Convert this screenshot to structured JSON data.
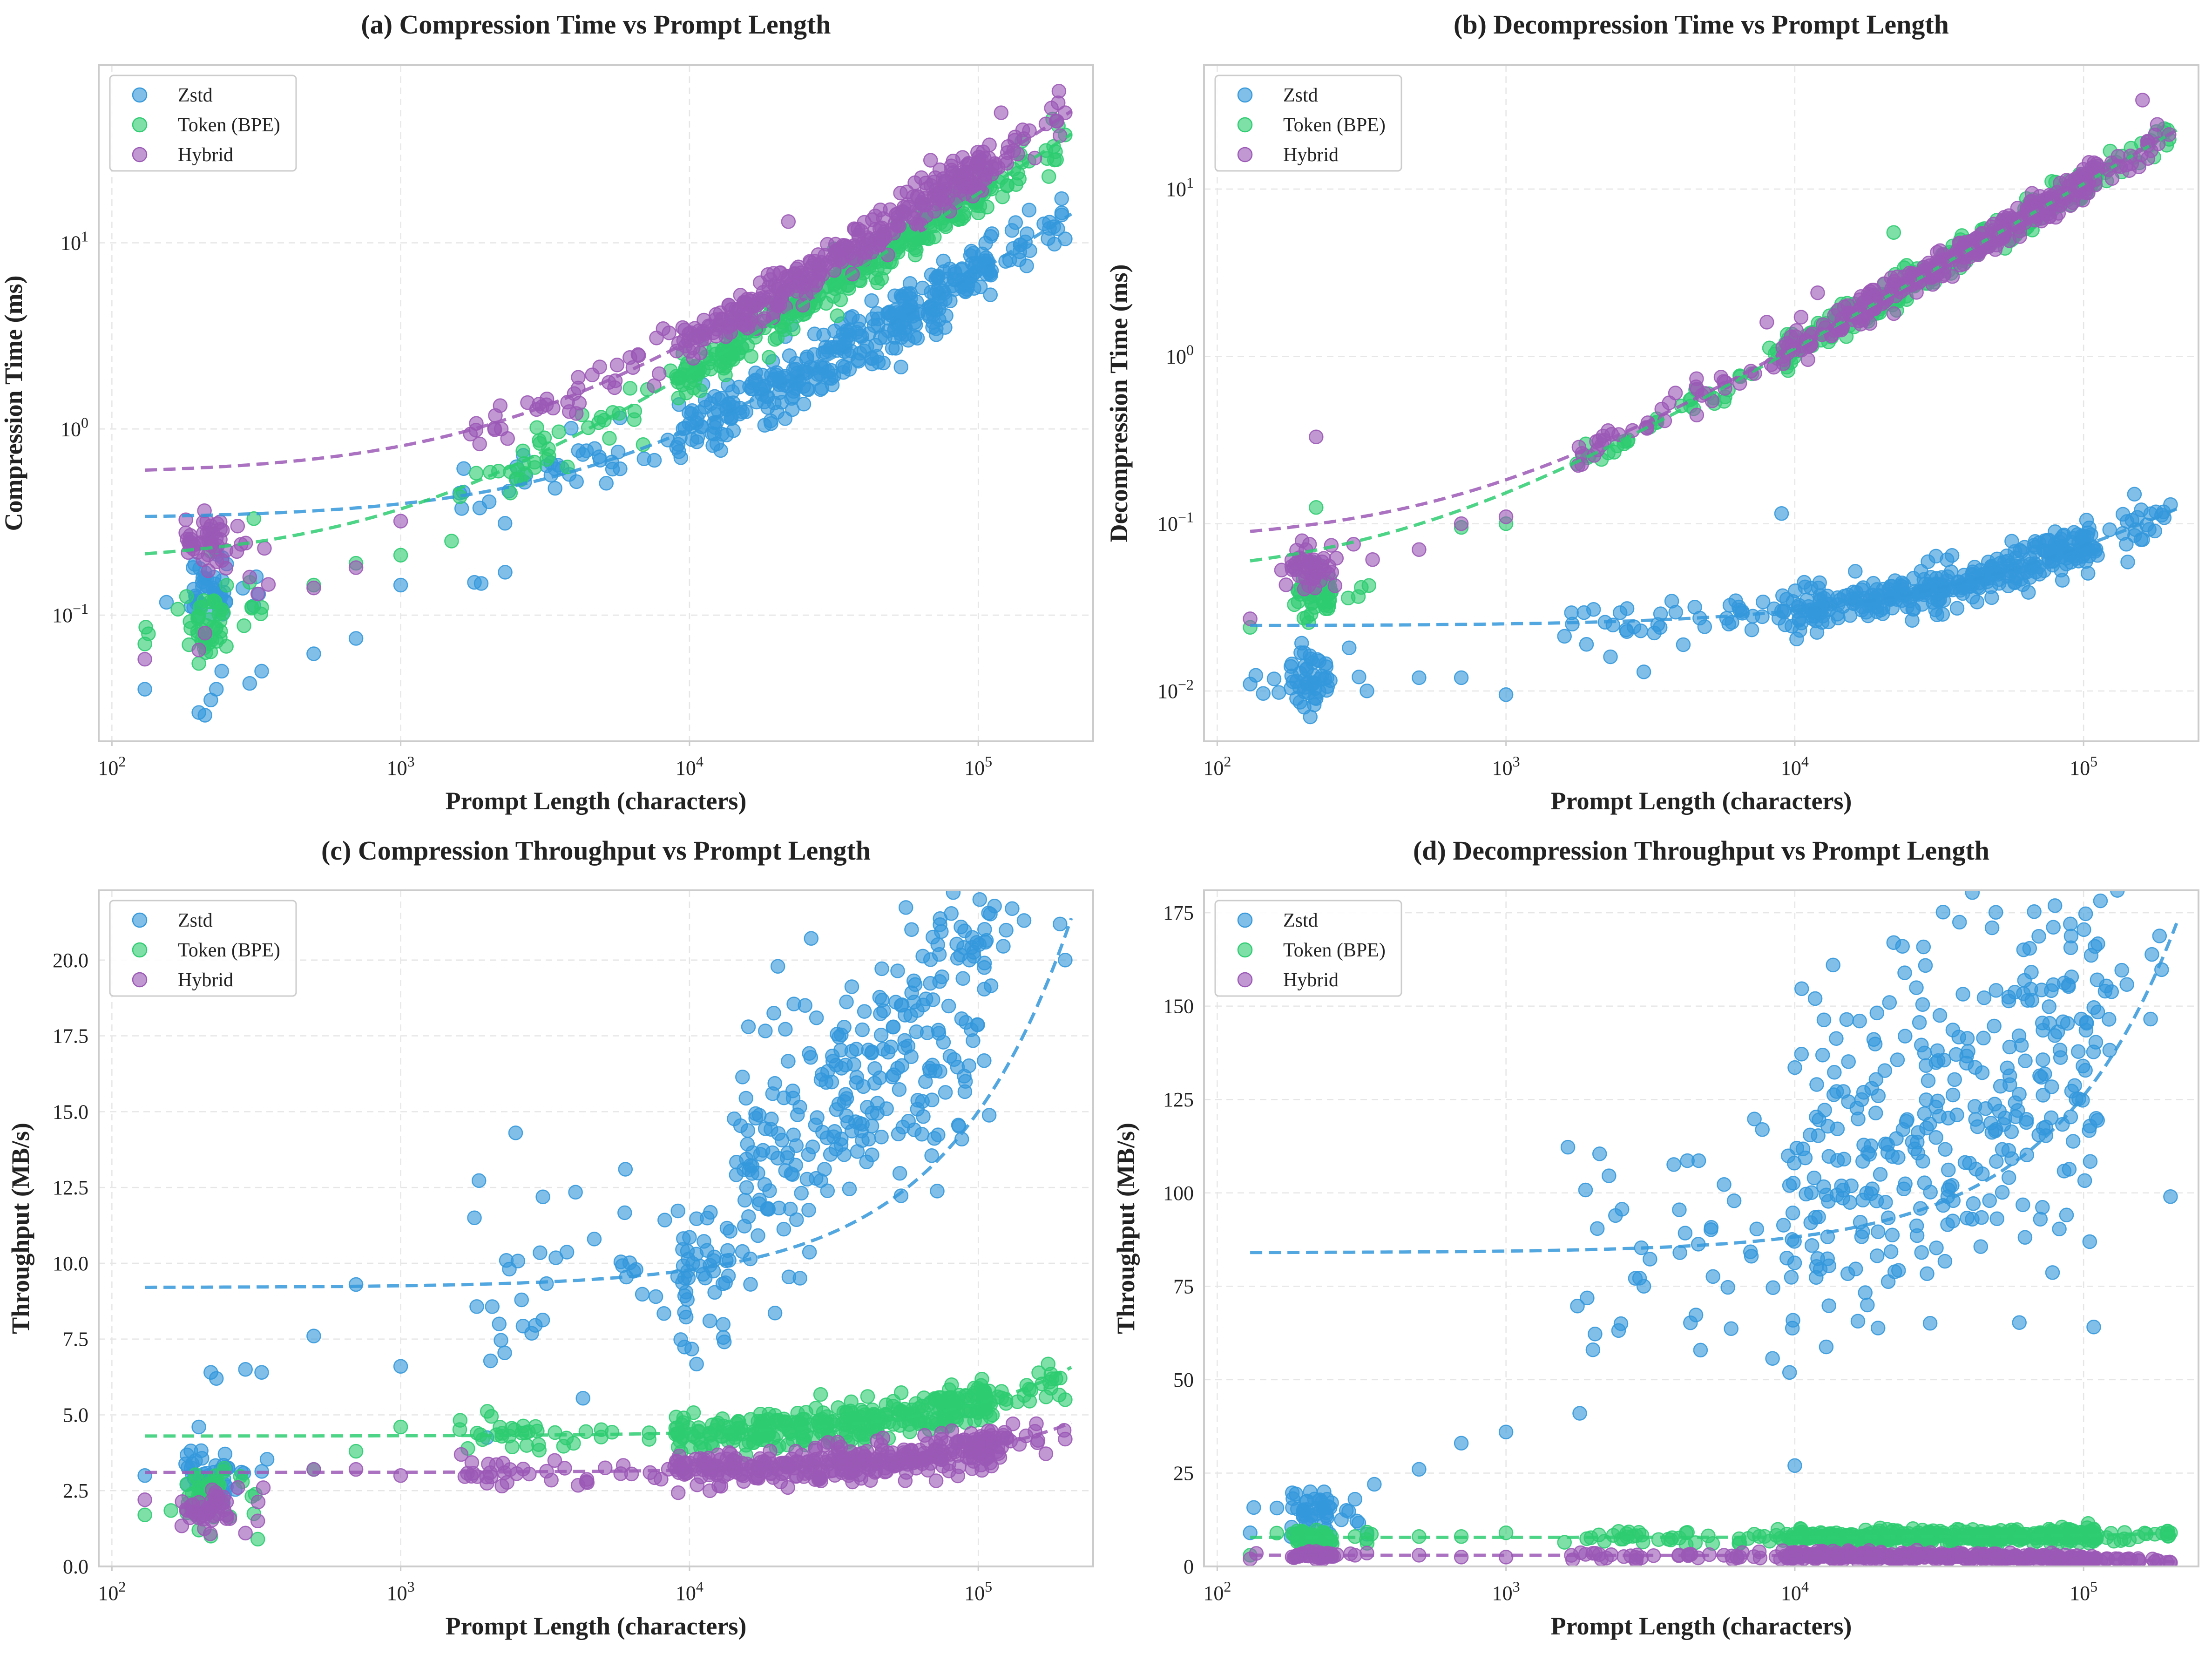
{
  "colors": {
    "zstd": "#3498db",
    "token": "#2ecc71",
    "hybrid": "#9b59b6"
  },
  "legend": [
    "Zstd",
    "Token (BPE)",
    "Hybrid"
  ],
  "chart_data": [
    {
      "id": "a",
      "type": "scatter",
      "xscale": "log",
      "yscale": "log",
      "title": "(a) Compression Time vs Prompt Length",
      "xlabel": "Prompt Length (characters)",
      "ylabel": "Compression Time (ms)",
      "xlim": [
        90,
        250000
      ],
      "ylim": [
        0.021,
        90
      ],
      "xticks": [
        100,
        1000,
        10000,
        100000
      ],
      "xtick_labels": [
        "10^2",
        "10^3",
        "10^4",
        "10^5"
      ],
      "yticks": [
        0.1,
        1,
        10
      ],
      "ytick_labels": [
        "10^-1",
        "10^0",
        "10^1"
      ],
      "series": [
        {
          "name": "Zstd",
          "color": "#3498db",
          "trend": {
            "a": 0.33,
            "b": 6.65e-05,
            "p": 1
          },
          "spread": 0.18,
          "extra": [
            [
              130,
              0.04
            ],
            [
              200,
              0.03
            ],
            [
              210,
              0.029
            ],
            [
              220,
              0.035
            ],
            [
              230,
              0.04
            ],
            [
              240,
              0.05
            ],
            [
              300,
              0.043
            ],
            [
              330,
              0.05
            ],
            [
              500,
              0.062
            ],
            [
              700,
              0.075
            ],
            [
              1000,
              0.145
            ],
            [
              1800,
              0.15
            ],
            [
              1900,
              0.148
            ],
            [
              2300,
              0.17
            ],
            [
              150000,
              15
            ],
            [
              200000,
              10.5
            ]
          ]
        },
        {
          "name": "Token (BPE)",
          "color": "#2ecc71",
          "trend": {
            "a": 0.19,
            "b": 0.000182,
            "p": 1
          },
          "spread": 0.14,
          "extra": [
            [
              130,
              0.07
            ],
            [
              200,
              0.055
            ],
            [
              210,
              0.075
            ],
            [
              220,
              0.22
            ],
            [
              300,
              0.15
            ],
            [
              310,
              0.33
            ],
            [
              330,
              0.11
            ],
            [
              500,
              0.145
            ],
            [
              700,
              0.19
            ],
            [
              1000,
              0.21
            ],
            [
              1500,
              0.25
            ],
            [
              200000,
              38
            ]
          ]
        },
        {
          "name": "Hybrid",
          "color": "#9b59b6",
          "trend": {
            "a": 0.57,
            "b": 0.00024,
            "p": 1
          },
          "spread": 0.14,
          "extra": [
            [
              130,
              0.058
            ],
            [
              200,
              0.065
            ],
            [
              210,
              0.08
            ],
            [
              280,
              0.24
            ],
            [
              300,
              0.16
            ],
            [
              320,
              0.13
            ],
            [
              500,
              0.14
            ],
            [
              700,
              0.18
            ],
            [
              1000,
              0.32
            ],
            [
              22000,
              13
            ],
            [
              120000,
              50
            ],
            [
              200000,
              50
            ]
          ]
        }
      ]
    },
    {
      "id": "b",
      "type": "scatter",
      "xscale": "log",
      "yscale": "log",
      "title": "(b) Decompression Time vs Prompt Length",
      "xlabel": "Prompt Length (characters)",
      "ylabel": "Decompression Time (ms)",
      "xlim": [
        90,
        250000
      ],
      "ylim": [
        0.005,
        55
      ],
      "xticks": [
        100,
        1000,
        10000,
        100000
      ],
      "xtick_labels": [
        "10^2",
        "10^3",
        "10^4",
        "10^5"
      ],
      "yticks": [
        0.01,
        0.1,
        1,
        10
      ],
      "ytick_labels": [
        "10^-2",
        "10^-1",
        "10^0",
        "10^1"
      ],
      "series": [
        {
          "name": "Zstd",
          "color": "#3498db",
          "trend": {
            "a": 0.0245,
            "b": 1.1e-06,
            "p": 0.93
          },
          "spread": 0.15,
          "extra": [
            [
              130,
              0.011
            ],
            [
              180,
              0.014
            ],
            [
              200,
              0.008
            ],
            [
              210,
              0.007
            ],
            [
              220,
              0.009
            ],
            [
              240,
              0.012
            ],
            [
              330,
              0.01
            ],
            [
              500,
              0.012
            ],
            [
              700,
              0.012
            ],
            [
              1000,
              0.0095
            ],
            [
              1900,
              0.019
            ],
            [
              2300,
              0.016
            ],
            [
              3000,
              0.013
            ],
            [
              9000,
              0.115
            ],
            [
              150000,
              0.15
            ],
            [
              200000,
              0.13
            ]
          ]
        },
        {
          "name": "Token (BPE)",
          "color": "#2ecc71",
          "trend": {
            "a": 0.046,
            "b": 0.000107,
            "p": 1
          },
          "spread": 0.1,
          "extra": [
            [
              130,
              0.024
            ],
            [
              220,
              0.125
            ],
            [
              700,
              0.095
            ],
            [
              1000,
              0.1
            ],
            [
              22000,
              5.5
            ],
            [
              80000,
              11
            ]
          ]
        },
        {
          "name": "Hybrid",
          "color": "#9b59b6",
          "trend": {
            "a": 0.076,
            "b": 0.000107,
            "p": 1
          },
          "spread": 0.1,
          "extra": [
            [
              130,
              0.027
            ],
            [
              220,
              0.33
            ],
            [
              500,
              0.07
            ],
            [
              700,
              0.1
            ],
            [
              1000,
              0.11
            ],
            [
              8000,
              1.6
            ],
            [
              12000,
              2.4
            ],
            [
              160000,
              34
            ]
          ]
        }
      ]
    },
    {
      "id": "c",
      "type": "scatter",
      "xscale": "log",
      "yscale": "linear",
      "title": "(c) Compression Throughput vs Prompt Length",
      "xlabel": "Prompt Length (characters)",
      "ylabel": "Throughput (MB/s)",
      "xlim": [
        90,
        250000
      ],
      "ylim": [
        0,
        22.3
      ],
      "xticks": [
        100,
        1000,
        10000,
        100000
      ],
      "xtick_labels": [
        "10^2",
        "10^3",
        "10^4",
        "10^5"
      ],
      "yticks": [
        0,
        2.5,
        5,
        7.5,
        10,
        12.5,
        15,
        17.5,
        20
      ],
      "ytick_labels": [
        "0.0",
        "2.5",
        "5.0",
        "7.5",
        "10.0",
        "12.5",
        "15.0",
        "17.5",
        "20.0"
      ],
      "series": [
        {
          "name": "Zstd",
          "color": "#3498db",
          "trend": {
            "a": 9.2,
            "b": 5.8e-05,
            "p": 1
          },
          "spread": 0.16,
          "extra": [
            [
              130,
              3.0
            ],
            [
              200,
              4.6
            ],
            [
              220,
              6.4
            ],
            [
              230,
              6.2
            ],
            [
              290,
              6.5
            ],
            [
              330,
              6.4
            ],
            [
              500,
              7.6
            ],
            [
              700,
              9.3
            ],
            [
              1000,
              6.6
            ],
            [
              1800,
              11.5
            ],
            [
              2500,
              14.3
            ],
            [
              6000,
              13.1
            ],
            [
              16000,
              17.8
            ],
            [
              200000,
              20
            ]
          ]
        },
        {
          "name": "Token (BPE)",
          "color": "#2ecc71",
          "trend": {
            "a": 4.3,
            "b": 1.08e-05,
            "p": 1
          },
          "spread": 0.07,
          "extra": [
            [
              130,
              1.7
            ],
            [
              200,
              1.2
            ],
            [
              220,
              1.0
            ],
            [
              320,
              0.9
            ],
            [
              500,
              3.2
            ],
            [
              700,
              3.8
            ],
            [
              1000,
              4.6
            ],
            [
              200000,
              5.5
            ]
          ]
        },
        {
          "name": "Hybrid",
          "color": "#9b59b6",
          "trend": {
            "a": 3.1,
            "b": 7.8e-06,
            "p": 1
          },
          "spread": 0.08,
          "extra": [
            [
              130,
              2.2
            ],
            [
              200,
              1.6
            ],
            [
              290,
              1.1
            ],
            [
              320,
              1.5
            ],
            [
              500,
              3.2
            ],
            [
              700,
              3.2
            ],
            [
              1000,
              3.0
            ],
            [
              200000,
              4.2
            ]
          ]
        }
      ]
    },
    {
      "id": "d",
      "type": "scatter",
      "xscale": "log",
      "yscale": "linear",
      "title": "(d) Decompression Throughput vs Prompt Length",
      "xlabel": "Prompt Length (characters)",
      "ylabel": "Throughput (MB/s)",
      "xlim": [
        90,
        250000
      ],
      "ylim": [
        0,
        181
      ],
      "xticks": [
        100,
        1000,
        10000,
        100000
      ],
      "xtick_labels": [
        "10^2",
        "10^3",
        "10^4",
        "10^5"
      ],
      "yticks": [
        0,
        25,
        50,
        75,
        100,
        125,
        150,
        175
      ],
      "ytick_labels": [
        "0",
        "25",
        "50",
        "75",
        "100",
        "125",
        "150",
        "175"
      ],
      "series": [
        {
          "name": "Zstd",
          "color": "#3498db",
          "trend": {
            "a": 84,
            "b": 0.00042,
            "p": 1
          },
          "spread": 0.2,
          "extra": [
            [
              130,
              9
            ],
            [
              180,
              8
            ],
            [
              200,
              15
            ],
            [
              210,
              20
            ],
            [
              220,
              14
            ],
            [
              240,
              18
            ],
            [
              280,
              15
            ],
            [
              300,
              18
            ],
            [
              350,
              22
            ],
            [
              500,
              26
            ],
            [
              700,
              33
            ],
            [
              1000,
              36
            ],
            [
              1800,
              41
            ],
            [
              2000,
              58
            ],
            [
              2500,
              65
            ],
            [
              3000,
              75
            ],
            [
              4000,
              84
            ],
            [
              10000,
              27
            ],
            [
              22000,
              167
            ],
            [
              90000,
              172
            ],
            [
              200000,
              99
            ]
          ]
        },
        {
          "name": "Token (BPE)",
          "color": "#2ecc71",
          "trend": {
            "a": 7.8,
            "b": 5.5e-06,
            "p": 1
          },
          "spread": 0.12,
          "extra": [
            [
              130,
              3
            ],
            [
              200,
              5
            ],
            [
              220,
              7
            ],
            [
              300,
              8
            ],
            [
              500,
              8
            ],
            [
              700,
              8
            ],
            [
              1000,
              9
            ],
            [
              200000,
              9
            ]
          ]
        },
        {
          "name": "Hybrid",
          "color": "#9b59b6",
          "trend": {
            "a": 3.0,
            "b": -8.5e-06,
            "p": 1
          },
          "spread": 0.2,
          "extra": [
            [
              130,
              2
            ],
            [
              200,
              3
            ],
            [
              220,
              4
            ],
            [
              300,
              3
            ],
            [
              500,
              3
            ],
            [
              700,
              2.5
            ],
            [
              1000,
              2.5
            ],
            [
              200000,
              1
            ]
          ]
        }
      ]
    }
  ]
}
